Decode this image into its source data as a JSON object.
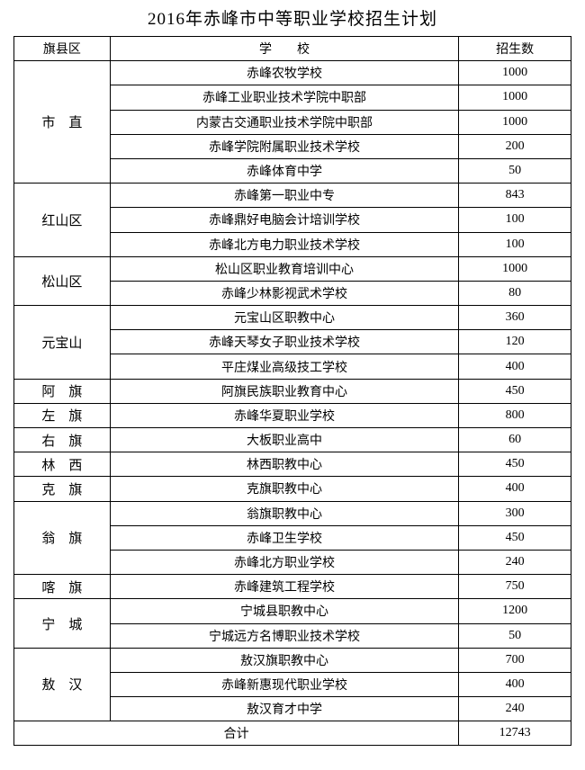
{
  "title": "2016年赤峰市中等职业学校招生计划",
  "table": {
    "headers": [
      "旗县区",
      "学　　校",
      "招生数"
    ],
    "groups": [
      {
        "district": "市　直",
        "schools": [
          {
            "name": "赤峰农牧学校",
            "count": 1000
          },
          {
            "name": "赤峰工业职业技术学院中职部",
            "count": 1000
          },
          {
            "name": "内蒙古交通职业技术学院中职部",
            "count": 1000
          },
          {
            "name": "赤峰学院附属职业技术学校",
            "count": 200
          },
          {
            "name": "赤峰体育中学",
            "count": 50
          }
        ]
      },
      {
        "district": "红山区",
        "schools": [
          {
            "name": "赤峰第一职业中专",
            "count": 843
          },
          {
            "name": "赤峰鼎好电脑会计培训学校",
            "count": 100
          },
          {
            "name": "赤峰北方电力职业技术学校",
            "count": 100
          }
        ]
      },
      {
        "district": "松山区",
        "schools": [
          {
            "name": "松山区职业教育培训中心",
            "count": 1000
          },
          {
            "name": "赤峰少林影视武术学校",
            "count": 80
          }
        ]
      },
      {
        "district": "元宝山",
        "schools": [
          {
            "name": "元宝山区职教中心",
            "count": 360
          },
          {
            "name": "赤峰天琴女子职业技术学校",
            "count": 120
          },
          {
            "name": "平庄煤业高级技工学校",
            "count": 400
          }
        ]
      },
      {
        "district": "阿　旗",
        "schools": [
          {
            "name": "阿旗民族职业教育中心",
            "count": 450
          }
        ]
      },
      {
        "district": "左　旗",
        "schools": [
          {
            "name": "赤峰华夏职业学校",
            "count": 800
          }
        ]
      },
      {
        "district": "右　旗",
        "schools": [
          {
            "name": "大板职业高中",
            "count": 60
          }
        ]
      },
      {
        "district": "林　西",
        "schools": [
          {
            "name": "林西职教中心",
            "count": 450
          }
        ]
      },
      {
        "district": "克　旗",
        "schools": [
          {
            "name": "克旗职教中心",
            "count": 400
          }
        ]
      },
      {
        "district": "翁　旗",
        "schools": [
          {
            "name": "翁旗职教中心",
            "count": 300
          },
          {
            "name": "赤峰卫生学校",
            "count": 450
          },
          {
            "name": "赤峰北方职业学校",
            "count": 240
          }
        ]
      },
      {
        "district": "喀　旗",
        "schools": [
          {
            "name": "赤峰建筑工程学校",
            "count": 750
          }
        ]
      },
      {
        "district": "宁　城",
        "schools": [
          {
            "name": "宁城县职教中心",
            "count": 1200
          },
          {
            "name": "宁城远方名博职业技术学校",
            "count": 50
          }
        ]
      },
      {
        "district": "敖　汉",
        "schools": [
          {
            "name": "敖汉旗职教中心",
            "count": 700
          },
          {
            "name": "赤峰新惠现代职业学校",
            "count": 400
          },
          {
            "name": "敖汉育才中学",
            "count": 240
          }
        ]
      }
    ],
    "total": {
      "label": "合计",
      "value": 12743
    }
  }
}
